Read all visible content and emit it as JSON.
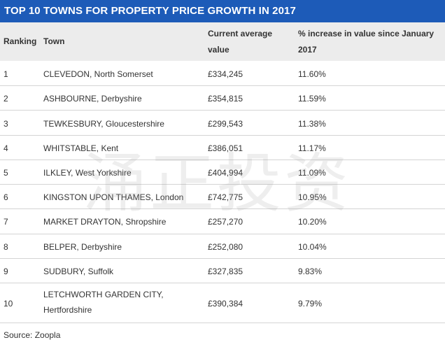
{
  "title": "TOP 10 TOWNS FOR PROPERTY PRICE GROWTH IN 2017",
  "headers": {
    "ranking": "Ranking",
    "town": "Town",
    "value_line1": "Current average",
    "value_line2": "value",
    "pct_line1": "% increase in value since January",
    "pct_line2": "2017"
  },
  "rows": [
    {
      "rank": "1",
      "town": "CLEVEDON, North Somerset",
      "value": "£334,245",
      "pct": "11.60%"
    },
    {
      "rank": "2",
      "town": "ASHBOURNE, Derbyshire",
      "value": "£354,815",
      "pct": "11.59%"
    },
    {
      "rank": "3",
      "town": "TEWKESBURY, Gloucestershire",
      "value": "£299,543",
      "pct": "11.38%"
    },
    {
      "rank": "4",
      "town": "WHITSTABLE, Kent",
      "value": "£386,051",
      "pct": "11.17%"
    },
    {
      "rank": "5",
      "town": "ILKLEY, West Yorkshire",
      "value": "£404,994",
      "pct": "11.09%"
    },
    {
      "rank": "6",
      "town": "KINGSTON UPON THAMES, London",
      "value": "£742,775",
      "pct": "10.95%"
    },
    {
      "rank": "7",
      "town": "MARKET DRAYTON, Shropshire",
      "value": "£257,270",
      "pct": "10.20%"
    },
    {
      "rank": "8",
      "town": "BELPER, Derbyshire",
      "value": "£252,080",
      "pct": "10.04%"
    },
    {
      "rank": "9",
      "town": "SUDBURY, Suffolk",
      "value": "£327,835",
      "pct": "9.83%"
    },
    {
      "rank": "10",
      "town_line1": "LETCHWORTH GARDEN CITY,",
      "town_line2": "Hertfordshire",
      "value": "£390,384",
      "pct": "9.79%"
    }
  ],
  "source": "Source: Zoopla",
  "watermark": "涌正投资",
  "colors": {
    "title_bg": "#1d5bb8",
    "header_bg": "#ececec",
    "row_border": "#d4d4d4"
  }
}
